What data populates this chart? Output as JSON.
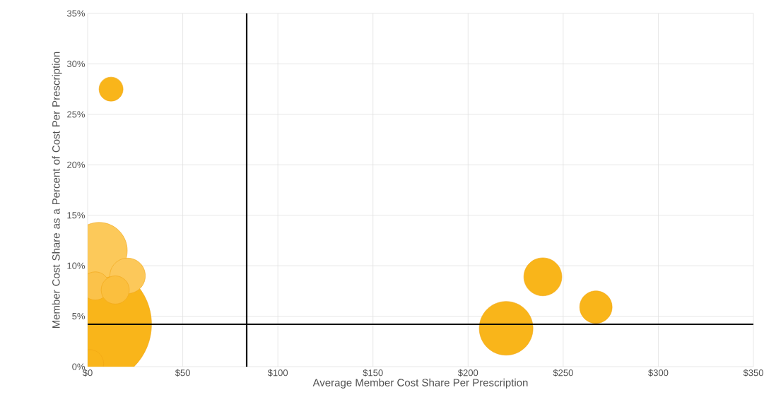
{
  "chart_data": {
    "type": "bubble",
    "xlabel": "Average Member Cost Share Per Prescription",
    "ylabel": "Member Cost Share as a Percent of Cost Per Prescription",
    "x": [
      2,
      6,
      4,
      21,
      14.5,
      1,
      12.3,
      220,
      239.3,
      267.2
    ],
    "values": [
      4.2,
      11.5,
      8,
      9,
      7.6,
      0.3,
      27.5,
      3.8,
      8.9,
      5.9
    ],
    "sizes": [
      1,
      0.22,
      0.055,
      0.087,
      0.055,
      0.055,
      0.04,
      0.2,
      0.1,
      0.073
    ],
    "colors": [
      "#f9b51a",
      "#fcc95a",
      "#fbc24a",
      "#fcc85a",
      "#fbbf3e",
      "#f9b51a",
      "#f9b51a",
      "#f9b51a",
      "#f9b51a",
      "#f9b51a"
    ],
    "xlim": [
      0,
      350
    ],
    "xticks": [
      {
        "value": 0,
        "label": "$0"
      },
      {
        "value": 50,
        "label": "$50"
      },
      {
        "value": 100,
        "label": "$100"
      },
      {
        "value": 150,
        "label": "$150"
      },
      {
        "value": 200,
        "label": "$200"
      },
      {
        "value": 250,
        "label": "$250"
      },
      {
        "value": 300,
        "label": "$300"
      },
      {
        "value": 350,
        "label": "$350"
      }
    ],
    "ylim": [
      0,
      35
    ],
    "yticks": [
      {
        "value": 0,
        "label": "0%"
      },
      {
        "value": 5,
        "label": "5%"
      },
      {
        "value": 10,
        "label": "10%"
      },
      {
        "value": 15,
        "label": "15%"
      },
      {
        "value": 20,
        "label": "20%"
      },
      {
        "value": 25,
        "label": "25%"
      },
      {
        "value": 30,
        "label": "30%"
      },
      {
        "value": 35,
        "label": "35%"
      }
    ],
    "ref_lines": [
      {
        "axis": "x",
        "value": 83.6,
        "color": "#000000"
      },
      {
        "axis": "y",
        "value": 4.2,
        "color": "#000000"
      }
    ],
    "grid": true
  }
}
